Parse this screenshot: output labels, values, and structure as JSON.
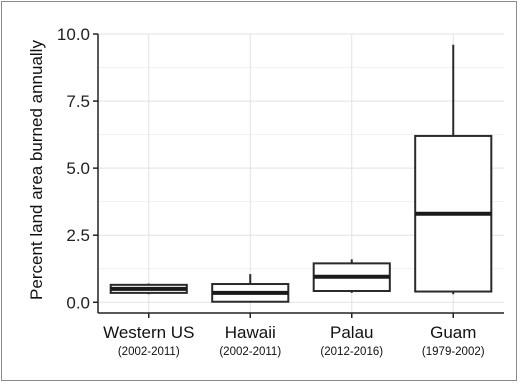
{
  "chart_data": {
    "type": "boxplot",
    "title": "",
    "xlabel": "",
    "ylabel": "Percent land area burned annually",
    "ylim": [
      -0.4,
      10.0
    ],
    "yticks": [
      "0.0",
      "2.5",
      "5.0",
      "7.5",
      "10.0"
    ],
    "ytick_values": [
      0,
      2.5,
      5.0,
      7.5,
      10.0
    ],
    "grid": true,
    "categories": [
      {
        "label": "Western US",
        "sub": "(2002-2011)",
        "whisker_low": 0.3,
        "q1": 0.35,
        "median": 0.5,
        "q3": 0.65,
        "whisker_high": 0.7
      },
      {
        "label": "Hawaii",
        "sub": "(2002-2011)",
        "whisker_low": 0.0,
        "q1": 0.02,
        "median": 0.35,
        "q3": 0.68,
        "whisker_high": 1.05
      },
      {
        "label": "Palau",
        "sub": "(2012-2016)",
        "whisker_low": 0.35,
        "q1": 0.42,
        "median": 0.95,
        "q3": 1.45,
        "whisker_high": 1.6
      },
      {
        "label": "Guam",
        "sub": "(1979-2002)",
        "whisker_low": 0.3,
        "q1": 0.4,
        "median": 3.3,
        "q3": 6.2,
        "whisker_high": 9.6
      }
    ]
  }
}
